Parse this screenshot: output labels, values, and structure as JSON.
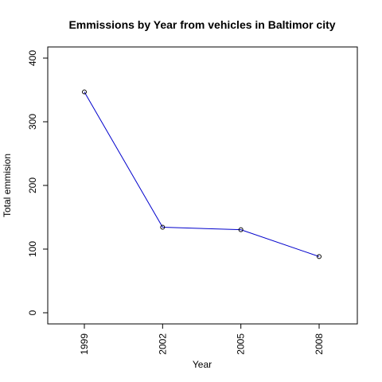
{
  "chart_data": {
    "type": "line",
    "title": "Emmissions by Year from vehicles in Baltimor city",
    "xlabel": "Year",
    "ylabel": "Total emmision",
    "x": [
      1999,
      2002,
      2005,
      2008
    ],
    "series": [
      {
        "values": [
          346.8,
          134.3,
          130.4,
          88.3
        ],
        "color": "#0000cc",
        "marker": "open-circle"
      }
    ],
    "xlim": [
      1998.6,
      2009.4
    ],
    "ylim": [
      0,
      400
    ],
    "yticks": [
      0,
      100,
      200,
      300,
      400
    ],
    "xticks": [
      "1999",
      "2002",
      "2005",
      "2008"
    ],
    "grid": false,
    "box": true
  }
}
